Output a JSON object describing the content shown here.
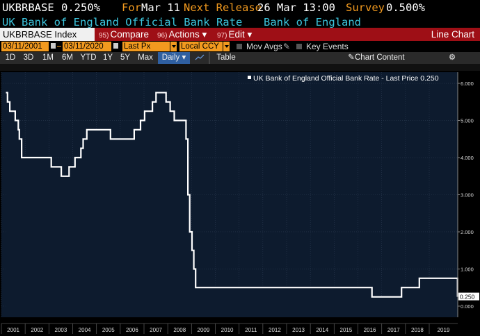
{
  "header": {
    "ticker": "UKBRBASE",
    "price": "0.250%",
    "for_label": "For",
    "for_date": "Mar 11",
    "next_label": "Next Release",
    "next_date": "26 Mar 13:00",
    "survey_label": "Survey",
    "survey_value": "0.500%",
    "description": "UK Bank of England Official Bank Rate",
    "source": "Bank of England"
  },
  "menu": {
    "index_label": "UKBRBASE Index",
    "items": [
      {
        "num": "95)",
        "label": "Compare"
      },
      {
        "num": "96)",
        "label": "Actions ▾"
      },
      {
        "num": "97)",
        "label": "Edit ▾"
      }
    ],
    "title": "Line Chart"
  },
  "controls": {
    "start_date": "03/11/2001",
    "end_date": "03/11/2020",
    "field": "Last Px",
    "currency": "Local CCY",
    "mov_avgs": "Mov Avgs",
    "key_events": "Key Events"
  },
  "toolbar": {
    "ranges": [
      "1D",
      "3D",
      "1M",
      "6M",
      "YTD",
      "1Y",
      "5Y",
      "Max"
    ],
    "frequency": "Daily ▾",
    "table": "Table",
    "chart_content": "Chart Content"
  },
  "colors": {
    "accent": "#f29a1f",
    "menu_bar": "#9e0f16",
    "plot_bg": "#0d1b2e",
    "line": "#ffffff",
    "cyan_text": "#3cc4dc"
  },
  "chart_data": {
    "type": "line",
    "legend": "UK Bank of England Official Bank Rate - Last Price 0.250",
    "last_value_label": "0.250",
    "ylim": [
      -0.3,
      6.3
    ],
    "y_ticks": [
      "6.000",
      "5.000",
      "4.000",
      "3.000",
      "2.000",
      "1.000",
      "0.000"
    ],
    "y_tick_values": [
      6,
      5,
      4,
      3,
      2,
      1,
      0
    ],
    "x_ticks": [
      "2001",
      "2002",
      "2003",
      "2004",
      "2005",
      "2006",
      "2007",
      "2008",
      "2009",
      "2010",
      "2011",
      "2012",
      "2013",
      "2014",
      "2015",
      "2016",
      "2017",
      "2018",
      "2019"
    ],
    "x_tick_years": [
      2001,
      2002,
      2003,
      2004,
      2005,
      2006,
      2007,
      2008,
      2009,
      2010,
      2011,
      2012,
      2013,
      2014,
      2015,
      2016,
      2017,
      2018,
      2019
    ],
    "xlim": [
      2001.0,
      2020.2
    ],
    "steps": [
      [
        "2001-03-11",
        5.75
      ],
      [
        "2001-04-05",
        5.5
      ],
      [
        "2001-05-10",
        5.25
      ],
      [
        "2001-08-02",
        5.0
      ],
      [
        "2001-09-18",
        4.75
      ],
      [
        "2001-10-04",
        4.5
      ],
      [
        "2001-11-08",
        4.0
      ],
      [
        "2003-02-06",
        3.75
      ],
      [
        "2003-07-10",
        3.5
      ],
      [
        "2003-11-06",
        3.75
      ],
      [
        "2004-02-05",
        4.0
      ],
      [
        "2004-05-06",
        4.25
      ],
      [
        "2004-06-10",
        4.5
      ],
      [
        "2004-08-05",
        4.75
      ],
      [
        "2005-08-04",
        4.5
      ],
      [
        "2006-08-03",
        4.75
      ],
      [
        "2006-11-09",
        5.0
      ],
      [
        "2007-01-11",
        5.25
      ],
      [
        "2007-05-10",
        5.5
      ],
      [
        "2007-07-05",
        5.75
      ],
      [
        "2007-12-06",
        5.5
      ],
      [
        "2008-02-07",
        5.25
      ],
      [
        "2008-04-10",
        5.0
      ],
      [
        "2008-10-08",
        4.5
      ],
      [
        "2008-11-06",
        3.0
      ],
      [
        "2008-12-04",
        2.0
      ],
      [
        "2009-01-08",
        1.5
      ],
      [
        "2009-02-05",
        1.0
      ],
      [
        "2009-03-05",
        0.5
      ],
      [
        "2016-08-04",
        0.25
      ],
      [
        "2017-11-02",
        0.5
      ],
      [
        "2018-08-02",
        0.75
      ],
      [
        "2020-03-11",
        0.25
      ]
    ]
  }
}
